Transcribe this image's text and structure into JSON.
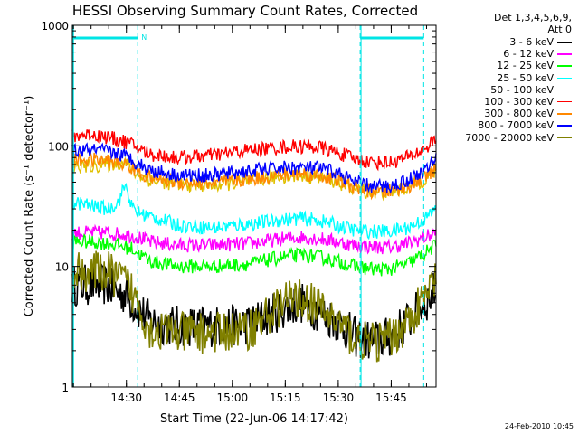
{
  "chart_data": {
    "type": "line",
    "title": "HESSI Observing Summary Count Rates, Corrected",
    "xlabel": "Start Time (22-Jun-06 14:17:42)",
    "ylabel": "Corrected Count Rate (s⁻¹ detector⁻¹)",
    "yscale": "log",
    "ylim": [
      1,
      1000
    ],
    "xlim_minutes": [
      0,
      103
    ],
    "x_tick_labels": [
      "14:30",
      "14:45",
      "15:00",
      "15:15",
      "15:30",
      "15:45"
    ],
    "x_tick_minutes": [
      15.3,
      30.3,
      45.3,
      60.3,
      75.3,
      90.3
    ],
    "y_tick_labels": [
      "1",
      "10",
      "100",
      "1000"
    ],
    "y_tick_values": [
      1,
      10,
      100,
      1000
    ],
    "legend_header": [
      "Det 1,3,4,5,6,9,",
      "Att 0"
    ],
    "legend_placement": "outside-right",
    "annotation_N": "N",
    "vertical_markers_minutes": [
      18.5,
      81.5,
      99.5
    ],
    "night_bar_segments_minutes": [
      [
        0,
        18.5
      ],
      [
        81.5,
        99.5
      ]
    ],
    "night_color": "#00e5e5",
    "x_minutes": [
      0,
      5,
      10,
      13,
      15,
      17,
      18.5,
      22,
      30,
      40,
      50,
      60,
      65,
      70,
      75,
      80,
      85,
      90,
      95,
      100,
      103
    ],
    "series": [
      {
        "name": "3 - 6 keV",
        "color": "#000000",
        "values": [
          7,
          7,
          7,
          6,
          6,
          5,
          4.5,
          3.5,
          3.2,
          3.2,
          3.3,
          4.5,
          5,
          4.2,
          3.5,
          2.6,
          2.4,
          2.6,
          3.5,
          5,
          6.5
        ]
      },
      {
        "name": "6 - 12 keV",
        "color": "#ff00ff",
        "values": [
          19,
          19,
          19,
          18.5,
          18.5,
          18,
          17.5,
          16,
          15,
          15,
          15.5,
          17,
          17.5,
          17,
          16,
          15,
          14.5,
          14.5,
          15.5,
          17.5,
          19
        ]
      },
      {
        "name": "12 - 25 keV",
        "color": "#00ff00",
        "values": [
          16,
          16,
          15.5,
          15,
          14.5,
          14,
          13,
          11,
          10,
          10,
          10.5,
          12,
          12.5,
          12,
          11,
          10,
          9.5,
          9.5,
          10.5,
          13,
          15
        ]
      },
      {
        "name": "25 - 50 keV",
        "color": "#00ffff",
        "values": [
          34,
          32,
          30,
          34,
          48,
          30,
          28,
          26,
          22,
          21,
          22.5,
          24.5,
          25,
          24,
          22,
          20,
          19.5,
          19.5,
          21,
          25,
          30
        ]
      },
      {
        "name": "50 - 100 keV",
        "color": "#e0c000",
        "values": [
          66,
          68,
          70,
          72,
          74,
          62,
          58,
          52,
          48,
          47,
          51,
          56,
          57,
          55,
          50,
          44,
          41,
          41,
          45,
          53,
          62
        ]
      },
      {
        "name": "100 - 300 keV",
        "color": "#ff0000",
        "values": [
          120,
          125,
          118,
          112,
          108,
          102,
          96,
          85,
          80,
          84,
          92,
          98,
          99,
          97,
          88,
          78,
          73,
          73,
          80,
          95,
          115
        ]
      },
      {
        "name": "300 - 800 keV",
        "color": "#ff8800",
        "values": [
          75,
          77,
          75,
          72,
          70,
          65,
          61,
          55,
          50,
          49,
          53,
          58,
          59,
          57,
          52,
          45,
          42,
          42,
          46,
          55,
          65
        ]
      },
      {
        "name": "800 - 7000 keV",
        "color": "#0000ff",
        "values": [
          90,
          92,
          90,
          86,
          82,
          77,
          72,
          63,
          57,
          57,
          62,
          66,
          66,
          65,
          60,
          50,
          46,
          46,
          52,
          63,
          78
        ]
      },
      {
        "name": "7000 - 20000 keV",
        "color": "#808000",
        "values": [
          9,
          9,
          9,
          8,
          7.5,
          6,
          5,
          3,
          2.8,
          2.8,
          3,
          5,
          5.5,
          4.5,
          3.5,
          2.5,
          2.3,
          2.5,
          3.5,
          5.5,
          8
        ]
      }
    ],
    "grid": false
  },
  "footer_date": "24-Feb-2010 10:45"
}
